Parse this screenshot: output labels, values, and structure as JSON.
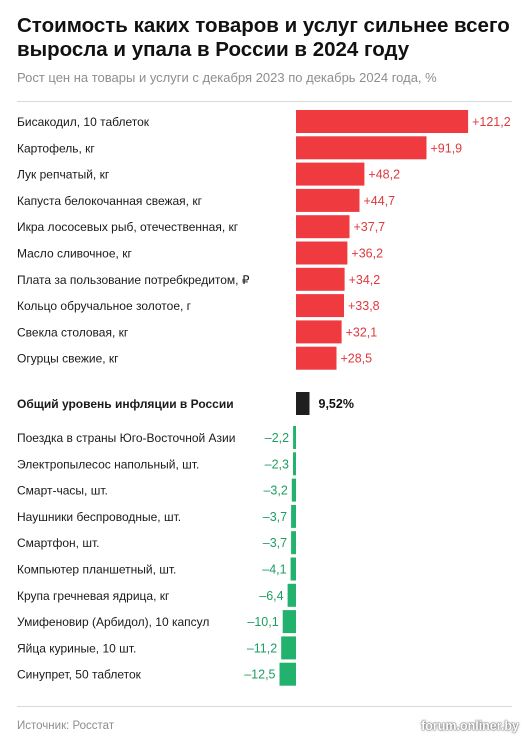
{
  "header": {
    "title": "Стоимость каких товаров и услуг сильнее всего выросла и упала в России в 2024 году",
    "subtitle": "Рост цен на товары и услуги с декабря 2023 по декабрь 2024 года, %"
  },
  "footer": {
    "source": "Источник: Росстат",
    "watermark": "forum.onliner.by"
  },
  "colors": {
    "increase": "#ef3a40",
    "increase_label": "#e0393e",
    "inflation": "#1f1f1f",
    "decrease": "#23b26e",
    "decrease_label": "#1e9e62"
  },
  "chart_data": {
    "type": "bar",
    "orientation": "horizontal",
    "unit": "%",
    "groups": [
      {
        "name": "increase",
        "items": [
          {
            "label": "Бисакодил, 10 таблеток",
            "value": 121.2,
            "display": "+121,2"
          },
          {
            "label": "Картофель, кг",
            "value": 91.9,
            "display": "+91,9"
          },
          {
            "label": "Лук репчатый, кг",
            "value": 48.2,
            "display": "+48,2"
          },
          {
            "label": "Капуста белокочанная свежая, кг",
            "value": 44.7,
            "display": "+44,7"
          },
          {
            "label": "Икра лососевых рыб, отечественная, кг",
            "value": 37.7,
            "display": "+37,7"
          },
          {
            "label": "Масло сливочное, кг",
            "value": 36.2,
            "display": "+36,2"
          },
          {
            "label": "Плата за пользование потребкредитом, ₽",
            "value": 34.2,
            "display": "+34,2"
          },
          {
            "label": "Кольцо обручальное золотое, г",
            "value": 33.8,
            "display": "+33,8"
          },
          {
            "label": "Свекла столовая, кг",
            "value": 32.1,
            "display": "+32,1"
          },
          {
            "label": "Огурцы свежие, кг",
            "value": 28.5,
            "display": "+28,5"
          }
        ]
      },
      {
        "name": "inflation",
        "items": [
          {
            "label": "Общий уровень инфляции в России",
            "value": 9.52,
            "display": "9,52%"
          }
        ]
      },
      {
        "name": "decrease",
        "items": [
          {
            "label": "Поездка в страны Юго-Восточной Азии",
            "value": -2.2,
            "display": "–2,2"
          },
          {
            "label": "Электропылесос напольный, шт.",
            "value": -2.3,
            "display": "–2,3"
          },
          {
            "label": "Смарт-часы, шт.",
            "value": -3.2,
            "display": "–3,2"
          },
          {
            "label": "Наушники беспроводные, шт.",
            "value": -3.7,
            "display": "–3,7"
          },
          {
            "label": "Смартфон, шт.",
            "value": -3.7,
            "display": "–3,7"
          },
          {
            "label": "Компьютер планшетный, шт.",
            "value": -4.1,
            "display": "–4,1"
          },
          {
            "label": "Крупа гречневая ядрица, кг",
            "value": -6.4,
            "display": "–6,4"
          },
          {
            "label": "Умифеновир (Арбидол), 10 капсул",
            "value": -10.1,
            "display": "–10,1"
          },
          {
            "label": "Яйца куриные, 10 шт.",
            "value": -11.2,
            "display": "–11,2"
          },
          {
            "label": "Синупрет, 50 таблеток",
            "value": -12.5,
            "display": "–12,5"
          }
        ]
      }
    ]
  }
}
